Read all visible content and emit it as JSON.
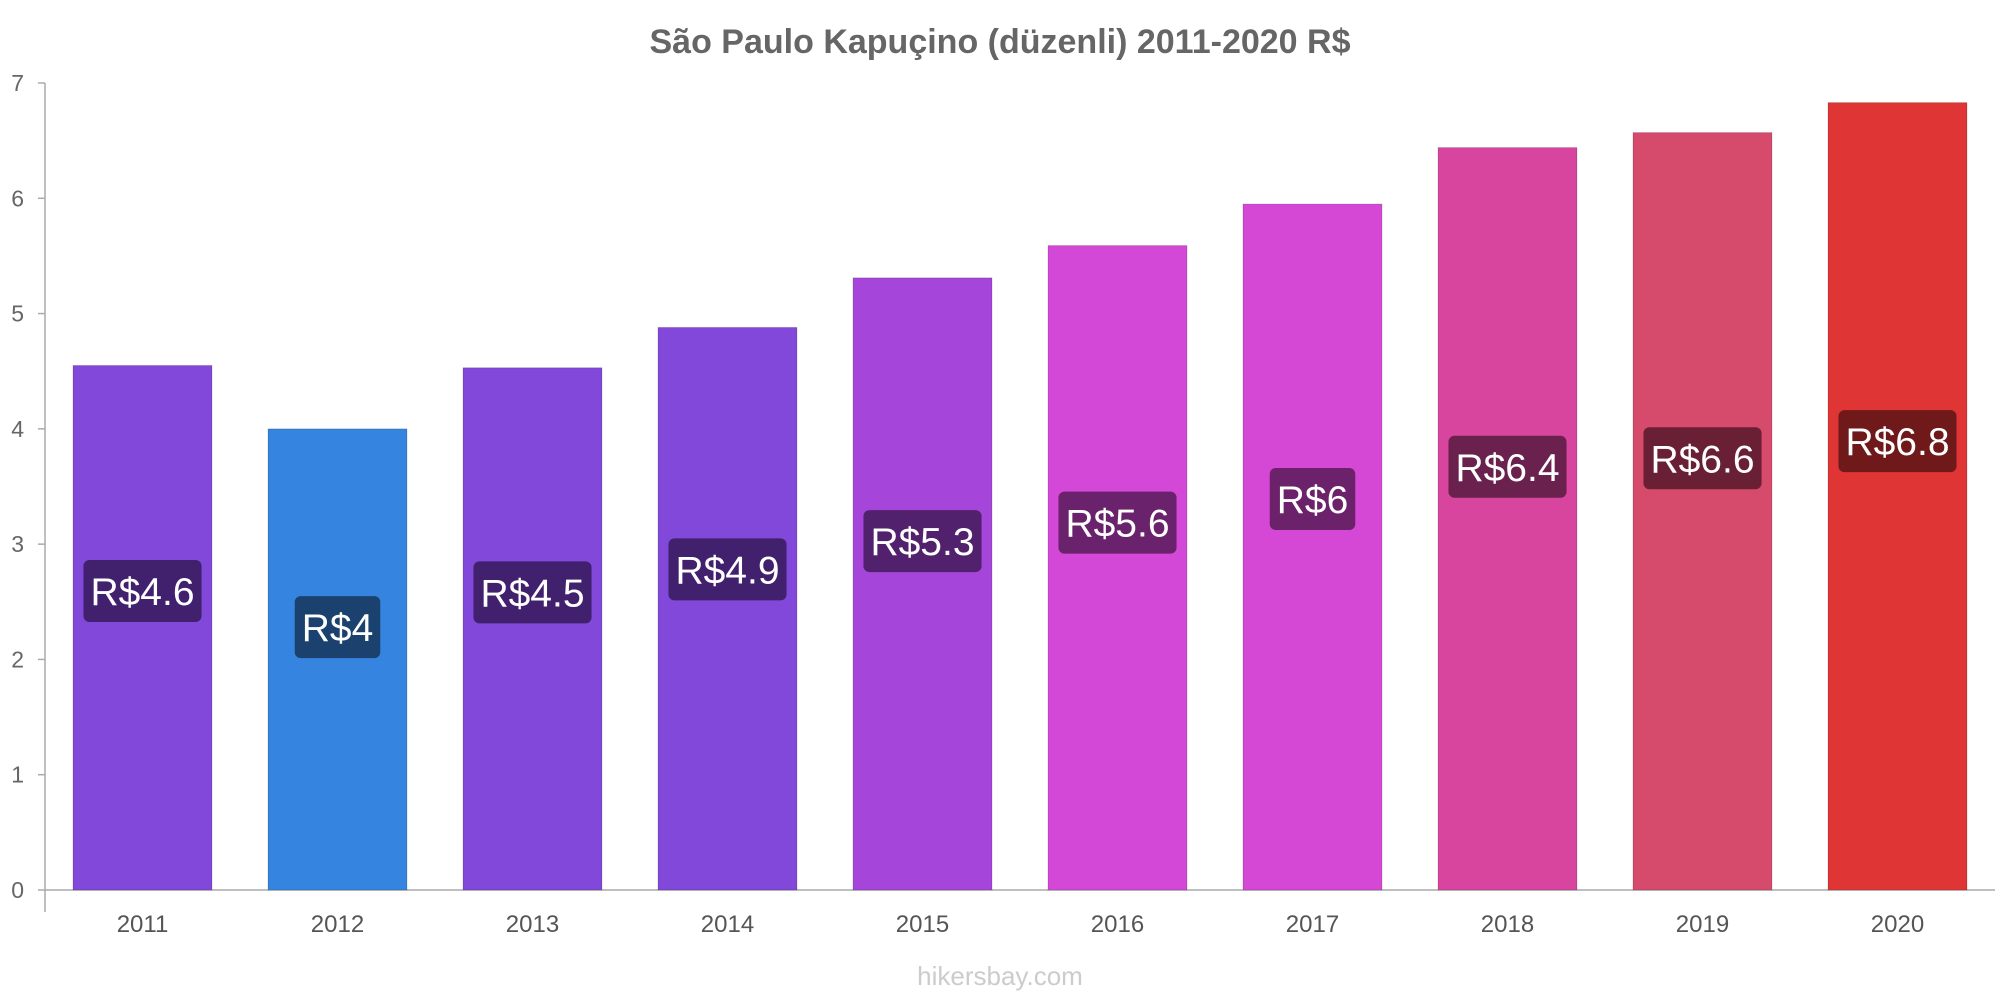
{
  "chart_data": {
    "type": "bar",
    "title": "São Paulo Kapuçino (düzenli) 2011-2020 R$",
    "categories": [
      "2011",
      "2012",
      "2013",
      "2014",
      "2015",
      "2016",
      "2017",
      "2018",
      "2019",
      "2020"
    ],
    "values": [
      4.55,
      4.0,
      4.53,
      4.88,
      5.31,
      5.59,
      5.95,
      6.44,
      6.57,
      6.83
    ],
    "data_labels": [
      "R$4.6",
      "R$4",
      "R$4.5",
      "R$4.9",
      "R$5.3",
      "R$5.6",
      "R$6",
      "R$6.4",
      "R$6.6",
      "R$6.8"
    ],
    "bar_colors": [
      "#8148d9",
      "#3584e0",
      "#8148d9",
      "#8148d9",
      "#a545d9",
      "#d348d6",
      "#d548d6",
      "#d8459e",
      "#d64a6b",
      "#e03535"
    ],
    "label_bg_colors": [
      "#41206e",
      "#1b416e",
      "#41206e",
      "#41206e",
      "#51216d",
      "#69226b",
      "#6b226b",
      "#6b214e",
      "#6a2034",
      "#70191a"
    ],
    "yticks": [
      0,
      1,
      2,
      3,
      4,
      5,
      6,
      7
    ],
    "ylim": [
      0,
      7
    ],
    "xlabel": "",
    "ylabel": "",
    "grid": false,
    "legend": "none"
  },
  "footer": {
    "watermark": "hikersbay.com"
  }
}
